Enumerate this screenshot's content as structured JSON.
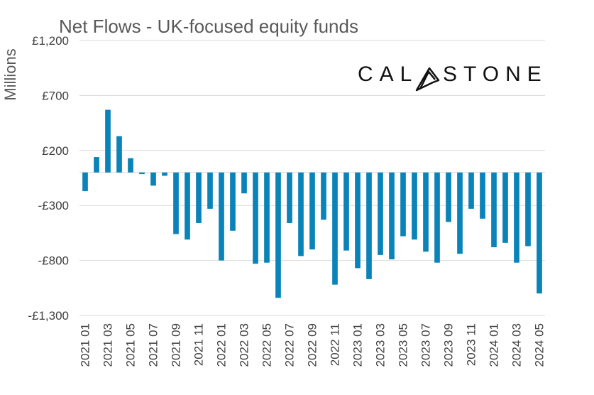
{
  "chart_data": {
    "type": "bar",
    "title": "Net Flows - UK-focused equity funds",
    "ylabel": "Millions",
    "xlabel": "",
    "ylim": [
      -1300,
      1200
    ],
    "yticks": [
      1200,
      700,
      200,
      -300,
      -800,
      -1300
    ],
    "ytick_labels": [
      "£1,200",
      "£700",
      "£200",
      "-£300",
      "-£800",
      "-£1,300"
    ],
    "categories": [
      "2021 01",
      "2021 02",
      "2021 03",
      "2021 04",
      "2021 05",
      "2021 06",
      "2021 07",
      "2021 08",
      "2021 09",
      "2021 10",
      "2021 11",
      "2021 12",
      "2022 01",
      "2022 02",
      "2022 03",
      "2022 04",
      "2022 05",
      "2022 06",
      "2022 07",
      "2022 08",
      "2022 09",
      "2022 10",
      "2022 11",
      "2022 12",
      "2023 01",
      "2023 02",
      "2023 03",
      "2023 04",
      "2023 05",
      "2023 06",
      "2023 07",
      "2023 08",
      "2023 09",
      "2023 10",
      "2023 11",
      "2023 12",
      "2024 01",
      "2024 02",
      "2024 03",
      "2024 04",
      "2024 05"
    ],
    "xtick_labels": [
      "2021 01",
      "2021 03",
      "2021 05",
      "2021 07",
      "2021 09",
      "2021 11",
      "2022 01",
      "2022 03",
      "2022 05",
      "2022 07",
      "2022 09",
      "2022 11",
      "2023 01",
      "2023 03",
      "2023 05",
      "2023 07",
      "2023 09",
      "2023 11",
      "2024 01",
      "2024 03",
      "2024 05"
    ],
    "values": [
      -170,
      140,
      570,
      330,
      130,
      -15,
      -120,
      -30,
      -560,
      -610,
      -460,
      -330,
      -800,
      -530,
      -190,
      -830,
      -820,
      -1140,
      -460,
      -760,
      -700,
      -430,
      -1020,
      -710,
      -870,
      -970,
      -750,
      -790,
      -580,
      -610,
      -720,
      -820,
      -450,
      -740,
      -330,
      -420,
      -680,
      -640,
      -820,
      -670,
      -1100
    ],
    "bar_color": "#0a83b8",
    "grid": true,
    "legend": "none"
  },
  "logo": {
    "text_left": "CAL",
    "text_right": "STONE"
  }
}
